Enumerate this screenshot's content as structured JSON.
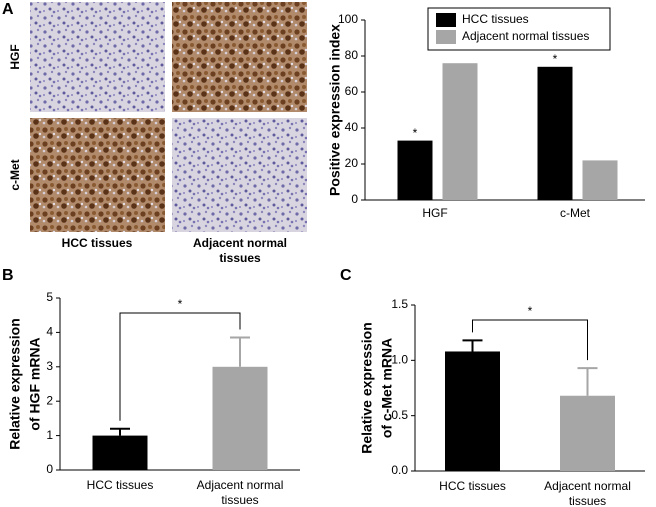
{
  "panel_labels": [
    "A",
    "B",
    "C"
  ],
  "micrographs": {
    "row_labels": [
      "HGF",
      "c-Met"
    ],
    "column_labels": [
      "HCC tissues",
      "Adjacent normal tissues"
    ]
  },
  "chart_data": [
    {
      "type": "bar",
      "ylabel": "Positive expression index",
      "categories": [
        "HGF",
        "c-Met"
      ],
      "series": [
        {
          "name": "HCC tissues",
          "color": "#000000",
          "values": [
            33,
            74
          ],
          "annotations": [
            "*",
            "*"
          ]
        },
        {
          "name": "Adjacent normal tissues",
          "color": "#a6a6a6",
          "values": [
            76,
            22
          ]
        }
      ],
      "ylim": [
        0,
        100
      ],
      "yticks": [
        0,
        20,
        40,
        60,
        80,
        100
      ],
      "legend": "upper right"
    },
    {
      "type": "bar",
      "ylabel": [
        "Relative expression",
        "of HGF mRNA"
      ],
      "categories": [
        "HCC tissues",
        "Adjacent normal tissues"
      ],
      "values": [
        1.0,
        3.0
      ],
      "errors": [
        0.2,
        0.85
      ],
      "colors": [
        "#000000",
        "#a6a6a6"
      ],
      "ylim": [
        0,
        5
      ],
      "yticks": [
        0,
        1,
        2,
        3,
        4,
        5
      ],
      "significance": "*"
    },
    {
      "type": "bar",
      "ylabel": [
        "Relative expression",
        "of c-Met mRNA"
      ],
      "categories": [
        "HCC tissues",
        "Adjacent normal tissues"
      ],
      "values": [
        1.08,
        0.68
      ],
      "errors": [
        0.1,
        0.25
      ],
      "colors": [
        "#000000",
        "#a6a6a6"
      ],
      "ylim": [
        0,
        1.5
      ],
      "yticks": [
        {
          "value": 0,
          "label": "0.0"
        },
        0.5,
        {
          "value": 1,
          "label": "1.0"
        },
        1.5
      ],
      "significance": "*"
    }
  ]
}
